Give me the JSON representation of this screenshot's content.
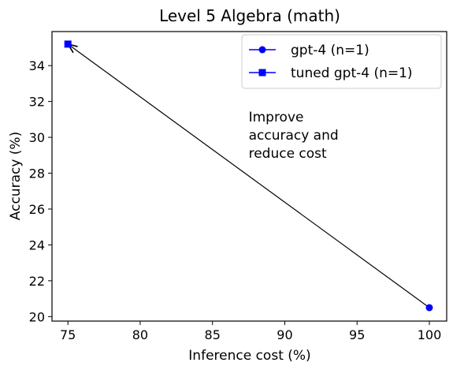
{
  "chart_data": {
    "type": "scatter",
    "title": "Level 5 Algebra (math)",
    "xlabel": "Inference cost (%)",
    "ylabel": "Accuracy (%)",
    "xlim": [
      73.9,
      101.2
    ],
    "ylim": [
      19.75,
      35.9
    ],
    "xticks": [
      75,
      80,
      85,
      90,
      95,
      100
    ],
    "yticks": [
      20,
      22,
      24,
      26,
      28,
      30,
      32,
      34
    ],
    "grid": false,
    "legend_position": "top-right",
    "series": [
      {
        "name": "gpt-4 (n=1)",
        "marker": "circle",
        "color": "#0000ff",
        "points": [
          {
            "x": 100,
            "y": 20.5
          }
        ]
      },
      {
        "name": "tuned gpt-4 (n=1)",
        "marker": "square",
        "color": "#0000ff",
        "points": [
          {
            "x": 75,
            "y": 35.2
          }
        ]
      }
    ],
    "annotation": {
      "lines": [
        "Improve",
        "accuracy and",
        "reduce cost"
      ],
      "anchor": {
        "x": 87.5,
        "y": 31.2
      },
      "arrow_from": {
        "x": 100,
        "y": 20.5
      },
      "arrow_to": {
        "x": 75,
        "y": 35.2
      },
      "arrow_color": "#000000"
    }
  }
}
